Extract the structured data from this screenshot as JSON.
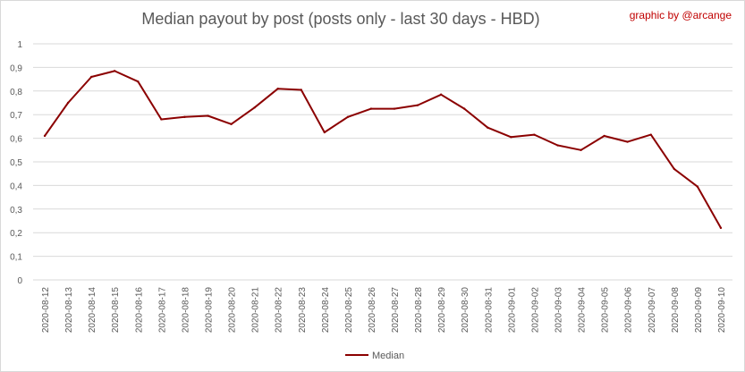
{
  "title": "Median payout by post (posts only - last 30 days - HBD)",
  "credit": "graphic by @arcange",
  "colors": {
    "line": "#8B0000",
    "grid": "#d9d9d9",
    "text": "#595959"
  },
  "chart_data": {
    "type": "line",
    "title": "Median payout by post (posts only - last 30 days - HBD)",
    "xlabel": "",
    "ylabel": "",
    "ylim": [
      0,
      1
    ],
    "yticks": [
      "0",
      "0,1",
      "0,2",
      "0,3",
      "0,4",
      "0,5",
      "0,6",
      "0,7",
      "0,8",
      "0,9",
      "1"
    ],
    "grid": true,
    "legend": "bottom",
    "categories": [
      "2020-08-12",
      "2020-08-13",
      "2020-08-14",
      "2020-08-15",
      "2020-08-16",
      "2020-08-17",
      "2020-08-18",
      "2020-08-19",
      "2020-08-20",
      "2020-08-21",
      "2020-08-22",
      "2020-08-23",
      "2020-08-24",
      "2020-08-25",
      "2020-08-26",
      "2020-08-27",
      "2020-08-28",
      "2020-08-29",
      "2020-08-30",
      "2020-08-31",
      "2020-09-01",
      "2020-09-02",
      "2020-09-03",
      "2020-09-04",
      "2020-09-05",
      "2020-09-06",
      "2020-09-07",
      "2020-09-08",
      "2020-09-09",
      "2020-09-10"
    ],
    "series": [
      {
        "name": "Median",
        "values": [
          0.61,
          0.75,
          0.86,
          0.885,
          0.84,
          0.68,
          0.69,
          0.695,
          0.66,
          0.73,
          0.81,
          0.805,
          0.625,
          0.69,
          0.725,
          0.725,
          0.74,
          0.785,
          0.725,
          0.645,
          0.605,
          0.615,
          0.57,
          0.55,
          0.61,
          0.585,
          0.615,
          0.47,
          0.395,
          0.22
        ]
      }
    ]
  }
}
